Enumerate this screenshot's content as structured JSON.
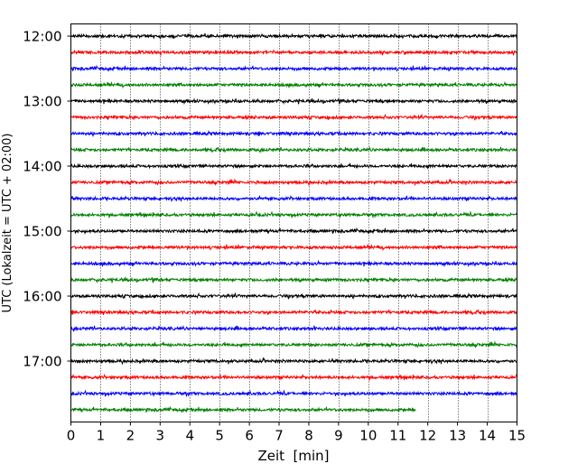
{
  "chart_data": {
    "type": "line",
    "subtype": "helicorder",
    "xlabel": "Zeit  [min]",
    "ylabel": "UTC (Lokalzeit = UTC + 02:00)",
    "xlim": [
      0,
      15
    ],
    "x_ticks": [
      0,
      1,
      2,
      3,
      4,
      5,
      6,
      7,
      8,
      9,
      10,
      11,
      12,
      13,
      14,
      15
    ],
    "x_tick_labels": [
      "0",
      "1",
      "2",
      "3",
      "4",
      "5",
      "6",
      "7",
      "8",
      "9",
      "10",
      "11",
      "12",
      "13",
      "14",
      "15"
    ],
    "y_tick_labels": [
      "12:00",
      "13:00",
      "14:00",
      "15:00",
      "16:00",
      "17:00"
    ],
    "rows_per_hour": 4,
    "minutes_per_row": 15,
    "trace_colors": [
      "#000000",
      "#ff0000",
      "#0000ff",
      "#007f00"
    ],
    "vertical_grid": "dotted, every minute",
    "rows": [
      {
        "start": "12:00",
        "color": "#000000",
        "end_min": 15
      },
      {
        "start": "12:15",
        "color": "#ff0000",
        "end_min": 15
      },
      {
        "start": "12:30",
        "color": "#0000ff",
        "end_min": 15
      },
      {
        "start": "12:45",
        "color": "#007f00",
        "end_min": 15
      },
      {
        "start": "13:00",
        "color": "#000000",
        "end_min": 15
      },
      {
        "start": "13:15",
        "color": "#ff0000",
        "end_min": 15
      },
      {
        "start": "13:30",
        "color": "#0000ff",
        "end_min": 15
      },
      {
        "start": "13:45",
        "color": "#007f00",
        "end_min": 15
      },
      {
        "start": "14:00",
        "color": "#000000",
        "end_min": 15
      },
      {
        "start": "14:15",
        "color": "#ff0000",
        "end_min": 15
      },
      {
        "start": "14:30",
        "color": "#0000ff",
        "end_min": 15
      },
      {
        "start": "14:45",
        "color": "#007f00",
        "end_min": 15
      },
      {
        "start": "15:00",
        "color": "#000000",
        "end_min": 15
      },
      {
        "start": "15:15",
        "color": "#ff0000",
        "end_min": 15
      },
      {
        "start": "15:30",
        "color": "#0000ff",
        "end_min": 15
      },
      {
        "start": "15:45",
        "color": "#007f00",
        "end_min": 15
      },
      {
        "start": "16:00",
        "color": "#000000",
        "end_min": 15
      },
      {
        "start": "16:15",
        "color": "#ff0000",
        "end_min": 15
      },
      {
        "start": "16:30",
        "color": "#0000ff",
        "end_min": 15
      },
      {
        "start": "16:45",
        "color": "#007f00",
        "end_min": 15
      },
      {
        "start": "17:00",
        "color": "#000000",
        "end_min": 15
      },
      {
        "start": "17:15",
        "color": "#ff0000",
        "end_min": 15
      },
      {
        "start": "17:30",
        "color": "#0000ff",
        "end_min": 15
      },
      {
        "start": "17:45",
        "color": "#007f00",
        "end_min": 11.6
      }
    ]
  }
}
